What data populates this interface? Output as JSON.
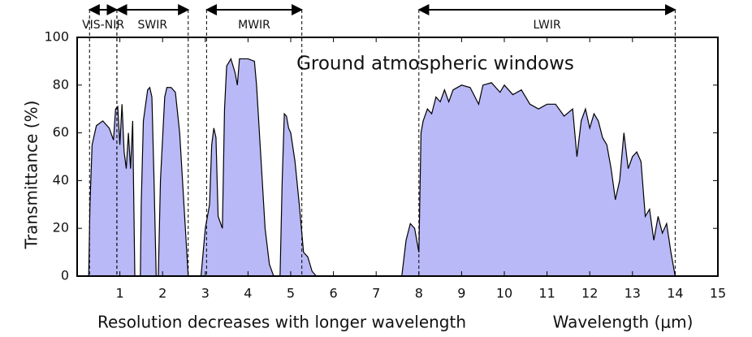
{
  "chart_data": {
    "type": "area",
    "title": "Ground atmospheric windows",
    "x_label": "Wavelength (μm)",
    "y_label": "Transmittance (%)",
    "annotation": "Resolution decreases with longer wavelength",
    "color": "#b9b9f7",
    "line_color": "#000000",
    "xlim": [
      0,
      15
    ],
    "xticks": [
      1,
      2,
      3,
      4,
      5,
      6,
      7,
      8,
      9,
      10,
      11,
      12,
      13,
      14,
      15
    ],
    "ylim": [
      0,
      100
    ],
    "yticks": [
      0,
      20,
      40,
      60,
      80,
      100
    ],
    "bands": [
      {
        "label": "VIS-NIR",
        "start": 0.29,
        "end": 0.93
      },
      {
        "label": "SWIR",
        "start": 0.93,
        "end": 2.6
      },
      {
        "label": "MWIR",
        "start": 3.03,
        "end": 5.26
      },
      {
        "label": "LWIR",
        "start": 8.0,
        "end": 14.0
      }
    ],
    "x": [
      0.27,
      0.3,
      0.35,
      0.45,
      0.6,
      0.75,
      0.85,
      0.9,
      0.95,
      1.0,
      1.05,
      1.1,
      1.15,
      1.2,
      1.25,
      1.3,
      1.35,
      1.48,
      1.5,
      1.55,
      1.65,
      1.7,
      1.75,
      1.8,
      1.85,
      1.9,
      1.95,
      2.05,
      2.1,
      2.2,
      2.3,
      2.4,
      2.5,
      2.6,
      2.9,
      3.0,
      3.1,
      3.15,
      3.2,
      3.25,
      3.3,
      3.4,
      3.45,
      3.5,
      3.6,
      3.7,
      3.75,
      3.8,
      4.0,
      4.15,
      4.2,
      4.3,
      4.4,
      4.5,
      4.6,
      4.75,
      4.8,
      4.85,
      4.9,
      4.95,
      5.0,
      5.1,
      5.2,
      5.3,
      5.4,
      5.5,
      5.6,
      7.6,
      7.7,
      7.8,
      7.9,
      8.0,
      8.05,
      8.1,
      8.2,
      8.3,
      8.4,
      8.5,
      8.6,
      8.7,
      8.8,
      9.0,
      9.2,
      9.4,
      9.5,
      9.7,
      9.9,
      10.0,
      10.2,
      10.4,
      10.6,
      10.8,
      11.0,
      11.2,
      11.4,
      11.6,
      11.7,
      11.8,
      11.9,
      12.0,
      12.1,
      12.2,
      12.3,
      12.4,
      12.5,
      12.6,
      12.7,
      12.8,
      12.9,
      13.0,
      13.1,
      13.2,
      13.3,
      13.4,
      13.5,
      13.6,
      13.7,
      13.8,
      13.9,
      14.0
    ],
    "values": [
      0,
      30,
      55,
      63,
      65,
      62,
      57,
      70,
      71,
      55,
      72,
      52,
      45,
      60,
      45,
      65,
      0,
      0,
      30,
      65,
      78,
      79,
      75,
      40,
      0,
      0,
      40,
      75,
      79,
      79,
      77,
      60,
      30,
      0,
      0,
      20,
      30,
      55,
      62,
      58,
      25,
      20,
      70,
      88,
      91,
      85,
      80,
      91,
      91,
      90,
      80,
      50,
      20,
      5,
      0,
      0,
      40,
      68,
      67,
      62,
      60,
      48,
      30,
      10,
      8,
      2,
      0,
      0,
      15,
      22,
      20,
      10,
      60,
      65,
      70,
      68,
      75,
      73,
      78,
      73,
      78,
      80,
      79,
      72,
      80,
      81,
      77,
      80,
      76,
      78,
      72,
      70,
      72,
      72,
      67,
      70,
      50,
      65,
      70,
      62,
      68,
      65,
      58,
      55,
      45,
      32,
      40,
      60,
      45,
      50,
      52,
      48,
      25,
      28,
      15,
      25,
      18,
      22,
      10,
      0
    ]
  }
}
